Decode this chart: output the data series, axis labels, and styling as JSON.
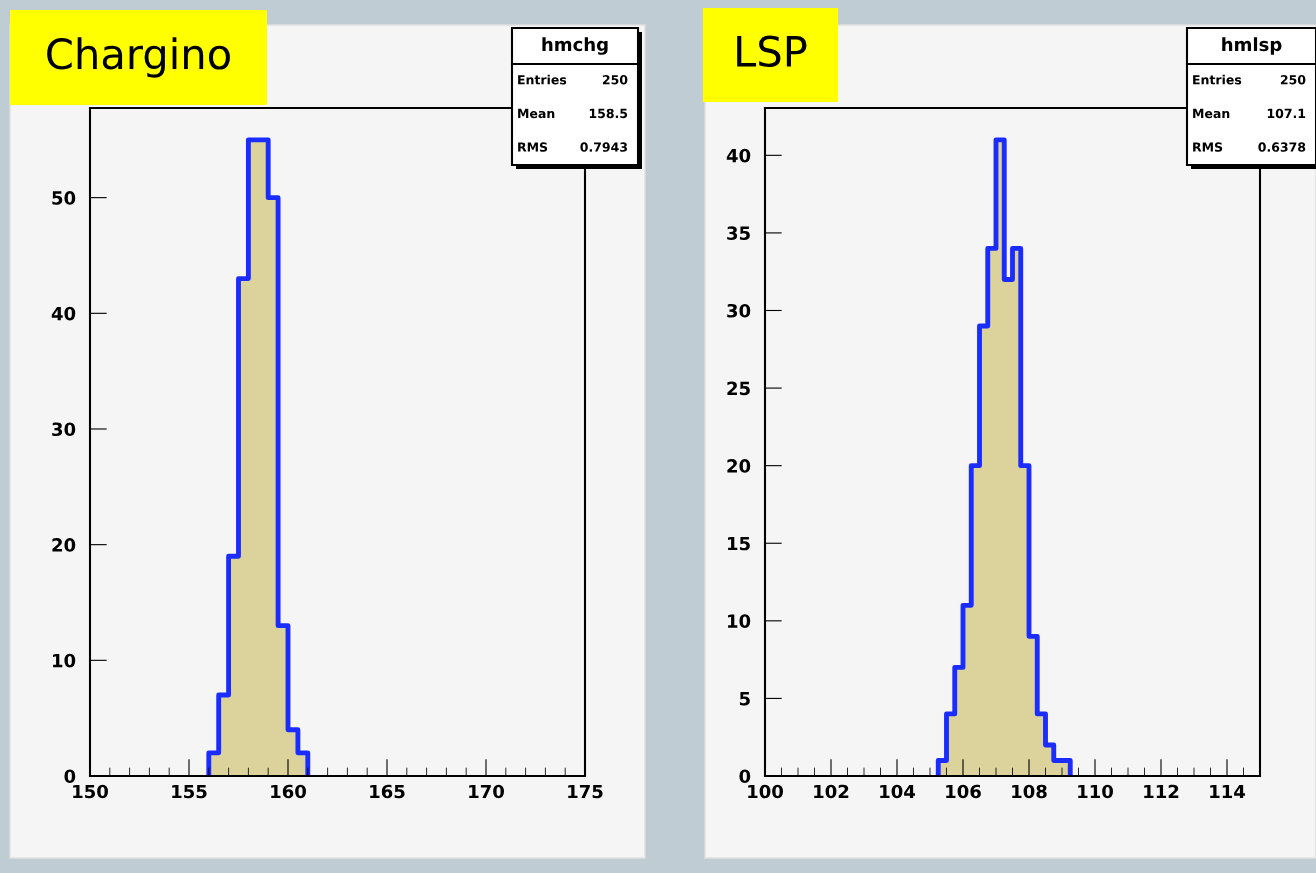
{
  "chart_data": [
    {
      "type": "histogram",
      "title": "Chargino",
      "color": "#1a2cff",
      "bins": [
        156,
        156.5,
        157,
        157.5,
        158,
        158.5,
        159,
        159.5,
        160,
        160.5,
        161
      ],
      "values": [
        2,
        7,
        19,
        43,
        55,
        55,
        50,
        13,
        4,
        2
      ],
      "xlim": [
        150,
        175
      ],
      "xticks": [
        150,
        155,
        160,
        165,
        170,
        175
      ],
      "ylim": [
        0,
        57.75
      ],
      "yticks": [
        0,
        10,
        20,
        30,
        40,
        50
      ],
      "annotations": [
        "hmchg",
        "Entries",
        "250",
        "Mean",
        "158.5",
        "RMS",
        "0.7943"
      ]
    },
    {
      "type": "histogram",
      "title": "LSP",
      "color": "#1a2cff",
      "bins": [
        105.25,
        105.5,
        105.75,
        106,
        106.25,
        106.5,
        106.75,
        107,
        107.25,
        107.5,
        107.75,
        108,
        108.25,
        108.5,
        108.75,
        109,
        109.25
      ],
      "values": [
        1,
        4,
        7,
        11,
        20,
        29,
        34,
        41,
        32,
        34,
        20,
        9,
        4,
        2,
        1,
        1
      ],
      "xlim": [
        100,
        115
      ],
      "xticks": [
        100,
        102,
        104,
        106,
        108,
        110,
        112,
        114
      ],
      "ylim": [
        0,
        43.05
      ],
      "yticks": [
        0,
        5,
        10,
        15,
        20,
        25,
        30,
        35,
        40
      ],
      "annotations": [
        "hmlsp",
        "Entries",
        "250",
        "Mean",
        "107.1",
        "RMS",
        "0.6378"
      ]
    }
  ]
}
